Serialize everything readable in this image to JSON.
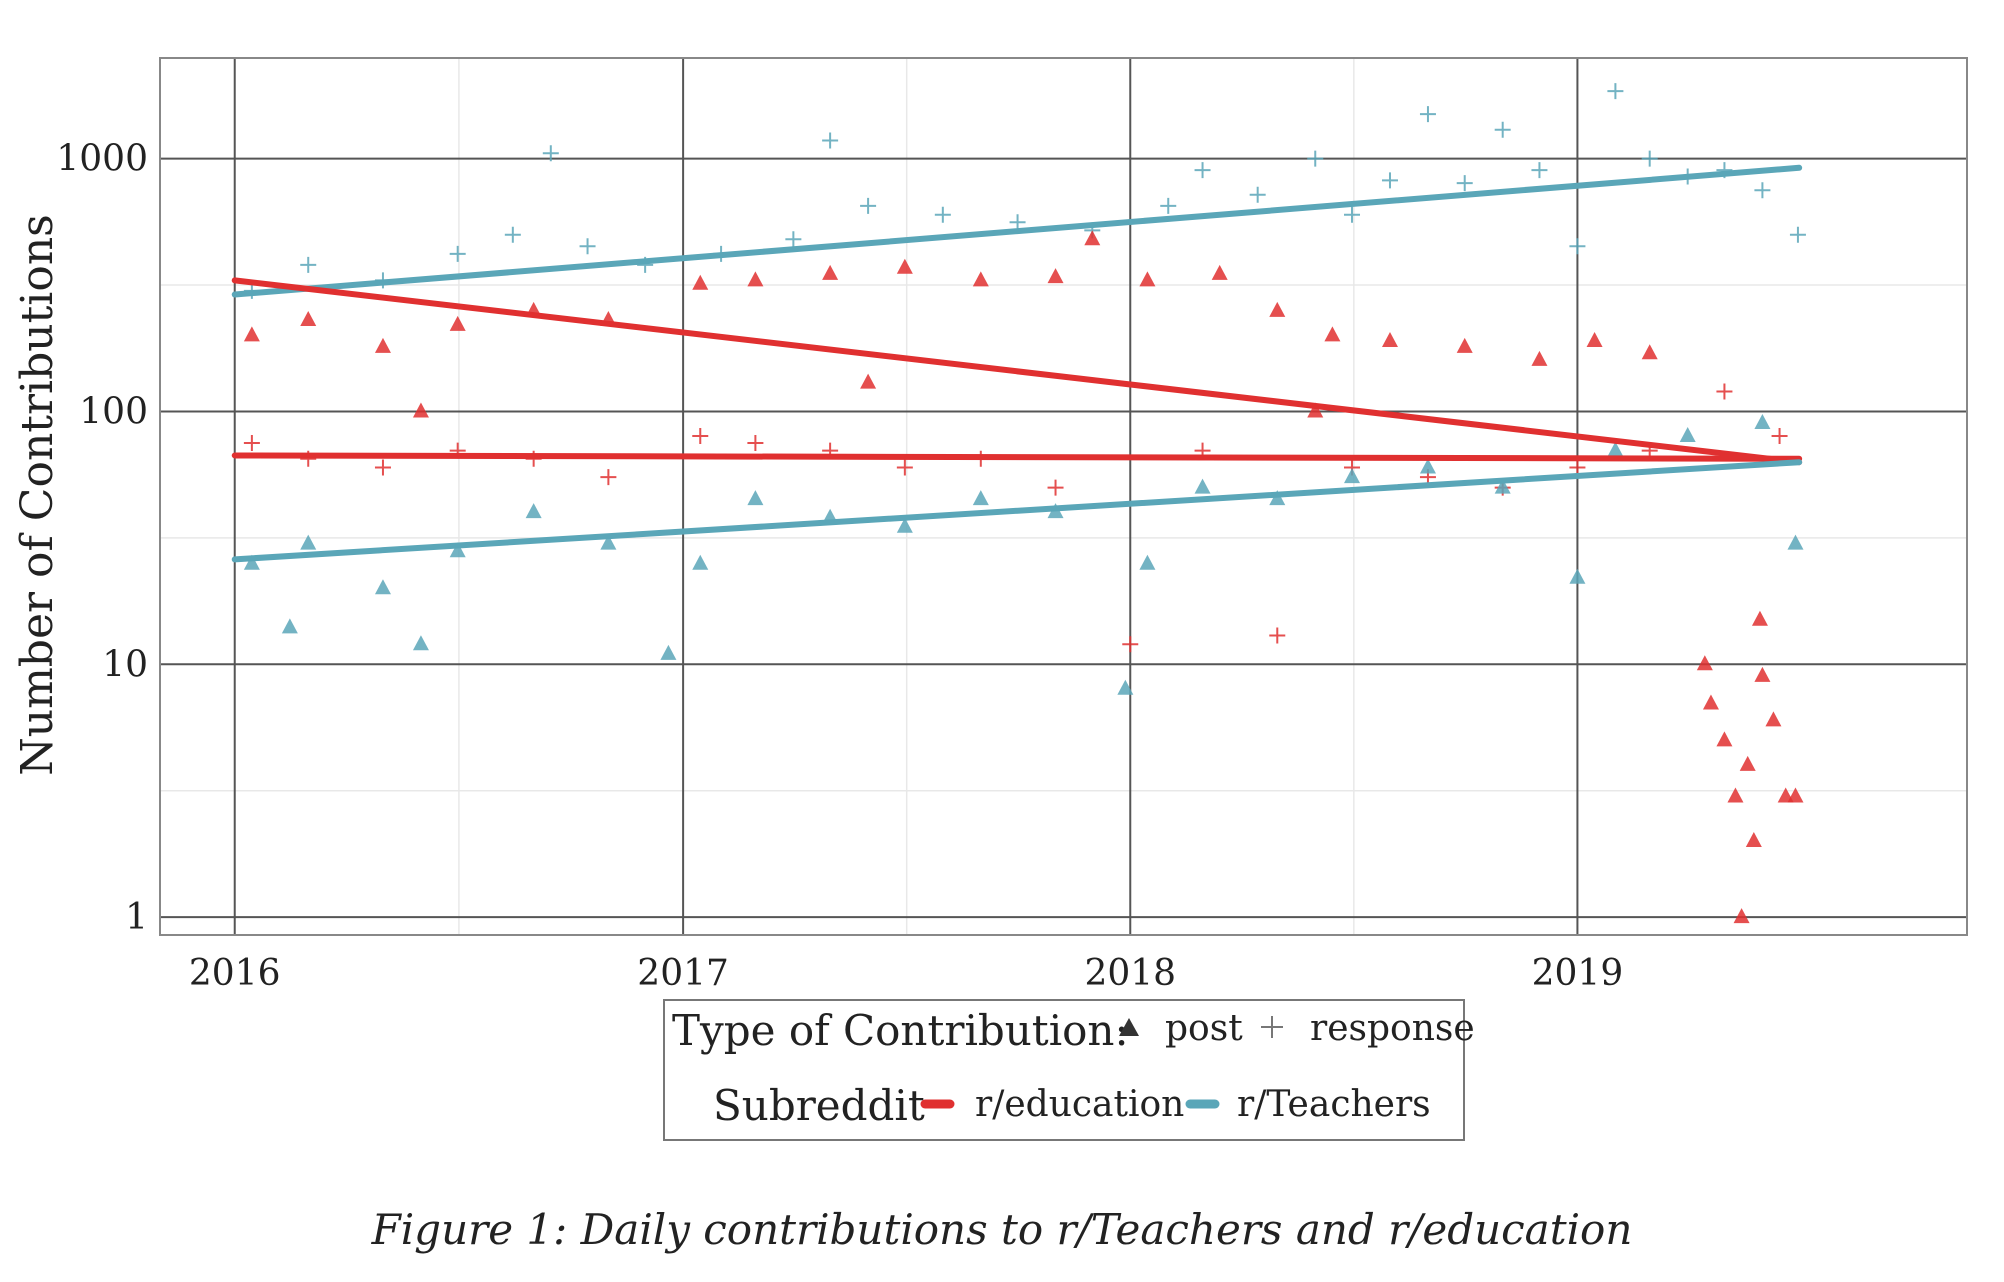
{
  "caption": "Figure 1:  Daily contributions to r/Teachers and r/education",
  "colors": {
    "education": "#e03030",
    "teachers": "#5aa6b8"
  },
  "chart_data": {
    "type": "scatter",
    "title": "",
    "xlabel": "",
    "ylabel": "Number of Contributions",
    "yscale": "log",
    "xlim": [
      "2015-11-01",
      "2019-11-15"
    ],
    "ylim": [
      0.85,
      2500
    ],
    "x_ticks": [
      "2016-01-01",
      "2017-01-01",
      "2018-01-01",
      "2019-01-01"
    ],
    "x_tick_labels": [
      "2016",
      "2017",
      "2018",
      "2019"
    ],
    "y_ticks": [
      1,
      10,
      100,
      1000
    ],
    "y_tick_labels": [
      "1",
      "10",
      "100",
      "1000"
    ],
    "grid": true,
    "legend_placement": "bottom",
    "legend": {
      "shape_title": "Type of Contribution:",
      "shape_items": [
        {
          "label": "post",
          "marker": "triangle"
        },
        {
          "label": "response",
          "marker": "plus"
        }
      ],
      "color_title": "Subreddit",
      "color_items": [
        {
          "label": "r/education",
          "color": "#e03030"
        },
        {
          "label": "r/Teachers",
          "color": "#5aa6b8"
        }
      ]
    },
    "series": [
      {
        "subreddit": "r/Teachers",
        "type": "response",
        "color": "#5aa6b8",
        "marker": "plus",
        "trend": [
          [
            "2016-01-01",
            290
          ],
          [
            "2019-07-01",
            920
          ]
        ],
        "points": [
          [
            "2016-01-15",
            300
          ],
          [
            "2016-03-01",
            380
          ],
          [
            "2016-05-01",
            330
          ],
          [
            "2016-07-01",
            420
          ],
          [
            "2016-08-15",
            500
          ],
          [
            "2016-09-15",
            1050
          ],
          [
            "2016-10-15",
            450
          ],
          [
            "2016-12-01",
            380
          ],
          [
            "2017-02-01",
            420
          ],
          [
            "2017-04-01",
            480
          ],
          [
            "2017-05-01",
            1180
          ],
          [
            "2017-06-01",
            650
          ],
          [
            "2017-08-01",
            600
          ],
          [
            "2017-10-01",
            560
          ],
          [
            "2017-12-01",
            520
          ],
          [
            "2018-02-01",
            650
          ],
          [
            "2018-03-01",
            900
          ],
          [
            "2018-04-15",
            720
          ],
          [
            "2018-06-01",
            1000
          ],
          [
            "2018-07-01",
            600
          ],
          [
            "2018-08-01",
            820
          ],
          [
            "2018-09-01",
            1500
          ],
          [
            "2018-10-01",
            800
          ],
          [
            "2018-11-01",
            1300
          ],
          [
            "2018-12-01",
            900
          ],
          [
            "2019-01-01",
            450
          ],
          [
            "2019-02-01",
            1850
          ],
          [
            "2019-03-01",
            1000
          ],
          [
            "2019-04-01",
            850
          ],
          [
            "2019-05-01",
            900
          ],
          [
            "2019-06-01",
            750
          ],
          [
            "2019-06-30",
            500
          ]
        ]
      },
      {
        "subreddit": "r/education",
        "type": "post",
        "color": "#e03030",
        "marker": "triangle",
        "trend": [
          [
            "2016-01-01",
            330
          ],
          [
            "2019-07-01",
            63
          ]
        ],
        "points": [
          [
            "2016-01-15",
            200
          ],
          [
            "2016-03-01",
            230
          ],
          [
            "2016-05-01",
            180
          ],
          [
            "2016-07-01",
            220
          ],
          [
            "2016-09-01",
            250
          ],
          [
            "2016-11-01",
            230
          ],
          [
            "2017-01-15",
            320
          ],
          [
            "2017-03-01",
            330
          ],
          [
            "2017-05-01",
            350
          ],
          [
            "2017-07-01",
            370
          ],
          [
            "2017-09-01",
            330
          ],
          [
            "2017-11-01",
            340
          ],
          [
            "2017-12-01",
            480
          ],
          [
            "2018-01-15",
            330
          ],
          [
            "2018-03-15",
            350
          ],
          [
            "2018-05-01",
            250
          ],
          [
            "2018-06-15",
            200
          ],
          [
            "2018-08-01",
            190
          ],
          [
            "2018-10-01",
            180
          ],
          [
            "2018-12-01",
            160
          ],
          [
            "2019-01-15",
            190
          ],
          [
            "2019-03-01",
            170
          ],
          [
            "2016-06-01",
            100
          ],
          [
            "2017-06-01",
            130
          ],
          [
            "2018-06-01",
            100
          ],
          [
            "2019-04-15",
            10
          ],
          [
            "2019-04-20",
            7
          ],
          [
            "2019-05-01",
            5
          ],
          [
            "2019-05-10",
            3
          ],
          [
            "2019-05-20",
            4
          ],
          [
            "2019-05-25",
            2
          ],
          [
            "2019-06-01",
            9
          ],
          [
            "2019-06-10",
            6
          ],
          [
            "2019-06-20",
            3
          ],
          [
            "2019-06-28",
            3
          ],
          [
            "2019-05-15",
            1
          ],
          [
            "2019-05-30",
            15
          ]
        ]
      },
      {
        "subreddit": "r/education",
        "type": "response",
        "color": "#e03030",
        "marker": "plus",
        "trend": [
          [
            "2016-01-01",
            67
          ],
          [
            "2019-07-01",
            65
          ]
        ],
        "points": [
          [
            "2016-01-15",
            75
          ],
          [
            "2016-03-01",
            65
          ],
          [
            "2016-05-01",
            60
          ],
          [
            "2016-07-01",
            70
          ],
          [
            "2016-09-01",
            65
          ],
          [
            "2016-11-01",
            55
          ],
          [
            "2017-01-15",
            80
          ],
          [
            "2017-03-01",
            75
          ],
          [
            "2017-05-01",
            70
          ],
          [
            "2017-07-01",
            60
          ],
          [
            "2017-09-01",
            65
          ],
          [
            "2017-11-01",
            50
          ],
          [
            "2018-01-01",
            12
          ],
          [
            "2018-03-01",
            70
          ],
          [
            "2018-05-01",
            13
          ],
          [
            "2018-07-01",
            60
          ],
          [
            "2018-09-01",
            55
          ],
          [
            "2018-11-01",
            50
          ],
          [
            "2019-01-01",
            60
          ],
          [
            "2019-03-01",
            70
          ],
          [
            "2019-05-01",
            120
          ],
          [
            "2019-06-15",
            80
          ]
        ]
      },
      {
        "subreddit": "r/Teachers",
        "type": "post",
        "color": "#5aa6b8",
        "marker": "triangle",
        "trend": [
          [
            "2016-01-01",
            26
          ],
          [
            "2019-07-01",
            63
          ]
        ],
        "points": [
          [
            "2016-01-15",
            25
          ],
          [
            "2016-02-15",
            14
          ],
          [
            "2016-03-01",
            30
          ],
          [
            "2016-05-01",
            20
          ],
          [
            "2016-06-01",
            12
          ],
          [
            "2016-07-01",
            28
          ],
          [
            "2016-09-01",
            40
          ],
          [
            "2016-11-01",
            30
          ],
          [
            "2016-12-20",
            11
          ],
          [
            "2017-01-15",
            25
          ],
          [
            "2017-03-01",
            45
          ],
          [
            "2017-05-01",
            38
          ],
          [
            "2017-07-01",
            35
          ],
          [
            "2017-09-01",
            45
          ],
          [
            "2017-11-01",
            40
          ],
          [
            "2017-12-28",
            8
          ],
          [
            "2018-01-15",
            25
          ],
          [
            "2018-03-01",
            50
          ],
          [
            "2018-05-01",
            45
          ],
          [
            "2018-07-01",
            55
          ],
          [
            "2018-09-01",
            60
          ],
          [
            "2018-11-01",
            50
          ],
          [
            "2019-01-01",
            22
          ],
          [
            "2019-02-01",
            70
          ],
          [
            "2019-04-01",
            80
          ],
          [
            "2019-06-01",
            90
          ],
          [
            "2019-06-28",
            30
          ]
        ]
      }
    ]
  }
}
